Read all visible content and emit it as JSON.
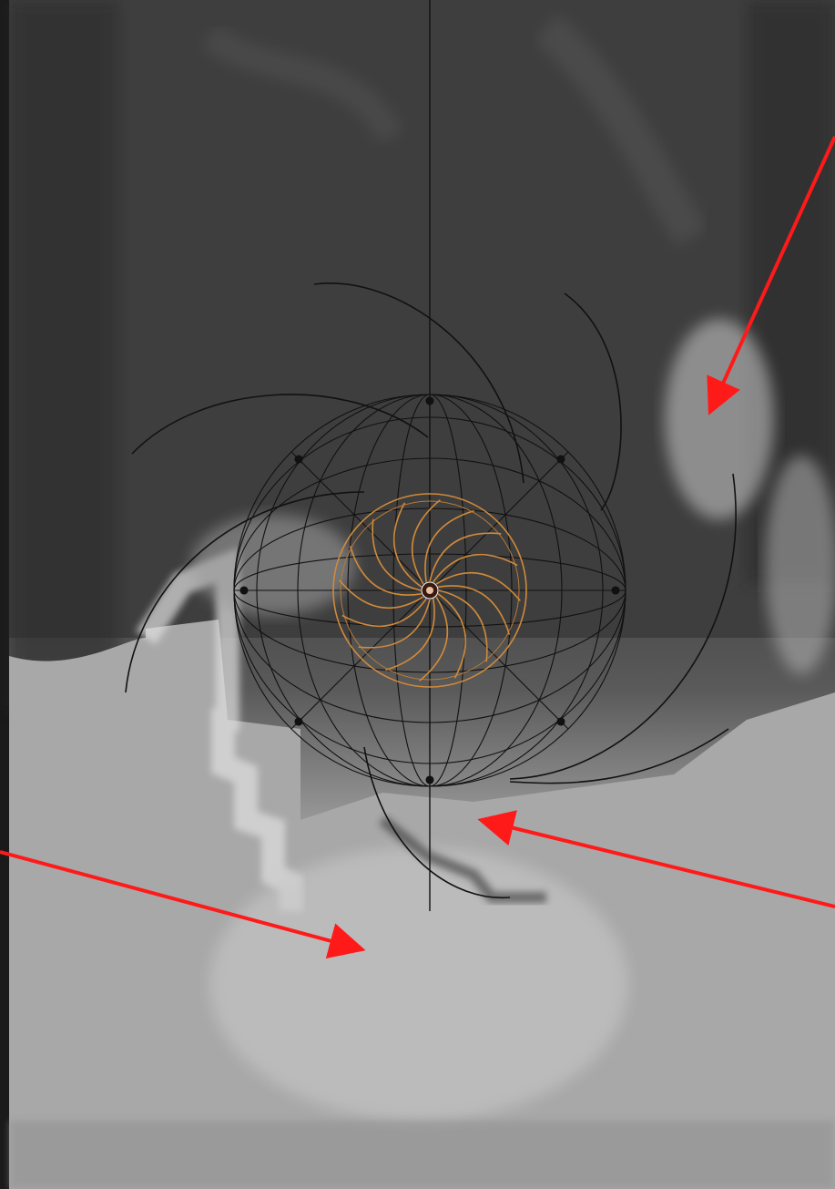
{
  "viewport": {
    "description_hidden": "",
    "colors": {
      "background_dark": "#3f3f3f",
      "background_light": "#b0b0b0",
      "wireframe": "#111111",
      "fan_object": "#d08a3a",
      "annotation_arrow": "#ff1a1a"
    },
    "icons": {
      "fan": "fan-blades-object",
      "sphere": "wireframe-sphere-object",
      "arrow": "annotation-arrow-icon"
    }
  }
}
